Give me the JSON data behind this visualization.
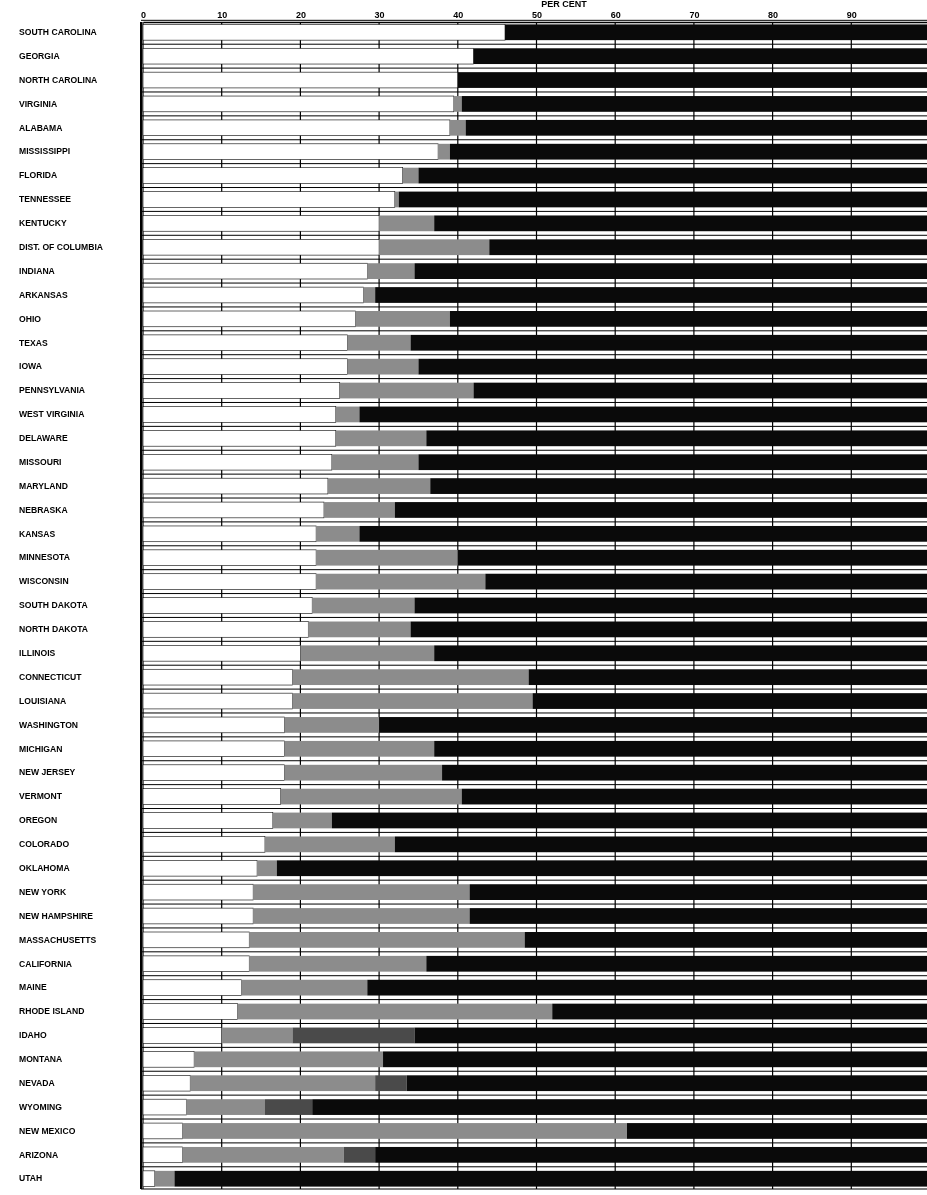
{
  "chart_data": {
    "type": "bar",
    "orientation": "horizontal",
    "stacked": true,
    "xlabel": "PER CENT",
    "categories": [
      "SOUTH CAROLINA",
      "GEORGIA",
      "NORTH CAROLINA",
      "VIRGINIA",
      "ALABAMA",
      "MISSISSIPPI",
      "FLORIDA",
      "TENNESSEE",
      "KENTUCKY",
      "DIST. OF COLUMBIA",
      "INDIANA",
      "ARKANSAS",
      "OHIO",
      "TEXAS",
      "IOWA",
      "PENNSYLVANIA",
      "WEST VIRGINIA",
      "DELAWARE",
      "MISSOURI",
      "MARYLAND",
      "NEBRASKA",
      "KANSAS",
      "MINNESOTA",
      "WISCONSIN",
      "SOUTH DAKOTA",
      "NORTH DAKOTA",
      "ILLINOIS",
      "CONNECTICUT",
      "LOUISIANA",
      "WASHINGTON",
      "MICHIGAN",
      "NEW JERSEY",
      "VERMONT",
      "OREGON",
      "COLORADO",
      "OKLAHOMA",
      "NEW YORK",
      "NEW HAMPSHIRE",
      "MASSACHUSETTS",
      "CALIFORNIA",
      "MAINE",
      "RHODE ISLAND",
      "IDAHO",
      "MONTANA",
      "NEVADA",
      "WYOMING",
      "NEW MEXICO",
      "ARIZONA",
      "UTAH"
    ],
    "series": [
      {
        "color": "#ffffff",
        "values": [
          46,
          42,
          40,
          39.5,
          39,
          37.5,
          33,
          32,
          30,
          30,
          28.5,
          28,
          27,
          26,
          26,
          25,
          24.5,
          24.5,
          24,
          23.5,
          23,
          22,
          22,
          22,
          21.5,
          21,
          20,
          19,
          19,
          18,
          18,
          18,
          17.5,
          16.5,
          15.5,
          14.5,
          14,
          14,
          13.5,
          13.5,
          12.5,
          12,
          10,
          6.5,
          6,
          5.5,
          5,
          5,
          1.5
        ]
      },
      {
        "color": "#8c8c8c",
        "values": [
          0,
          0,
          0,
          1,
          2,
          1.5,
          2,
          0.5,
          7,
          14,
          6,
          1.5,
          12,
          8,
          9,
          17,
          3,
          11.5,
          11,
          13,
          9,
          5.5,
          18,
          21.5,
          13,
          13,
          17,
          30,
          30.5,
          12,
          19,
          20,
          23,
          7.5,
          16.5,
          2.5,
          27.5,
          27.5,
          35,
          22.5,
          16,
          40,
          9,
          24,
          23.5,
          10,
          56.5,
          20.5,
          2.5
        ]
      },
      {
        "color": "#4a4a4a",
        "values": [
          0,
          0,
          0,
          0,
          0,
          0,
          0,
          0,
          0,
          0,
          0,
          0,
          0,
          0,
          0,
          0,
          0,
          0,
          0,
          0,
          0,
          0,
          0,
          0,
          0,
          0,
          0,
          0,
          0,
          0,
          0,
          0,
          0,
          0,
          0,
          0,
          0,
          0,
          0,
          0,
          0,
          0,
          15.5,
          0,
          4,
          6,
          0,
          4,
          0
        ]
      },
      {
        "color": "#0a0a0a",
        "values": [
          54,
          58,
          60,
          59.5,
          59,
          61,
          65,
          67.5,
          63,
          56,
          65.5,
          70.5,
          61,
          66,
          65,
          58,
          72.5,
          64,
          65,
          63.5,
          68,
          72.5,
          60,
          56.5,
          65.5,
          66,
          63,
          51,
          50.5,
          70,
          63,
          62,
          59.5,
          76,
          68,
          83,
          58.5,
          58.5,
          51.5,
          64,
          71.5,
          48,
          65.5,
          69.5,
          66.5,
          78.5,
          38.5,
          70.5,
          96
        ]
      }
    ],
    "xlim": [
      0,
      100
    ],
    "xticks": [
      0,
      10,
      20,
      30,
      40,
      50,
      60,
      70,
      80,
      90
    ],
    "grid": "x"
  }
}
